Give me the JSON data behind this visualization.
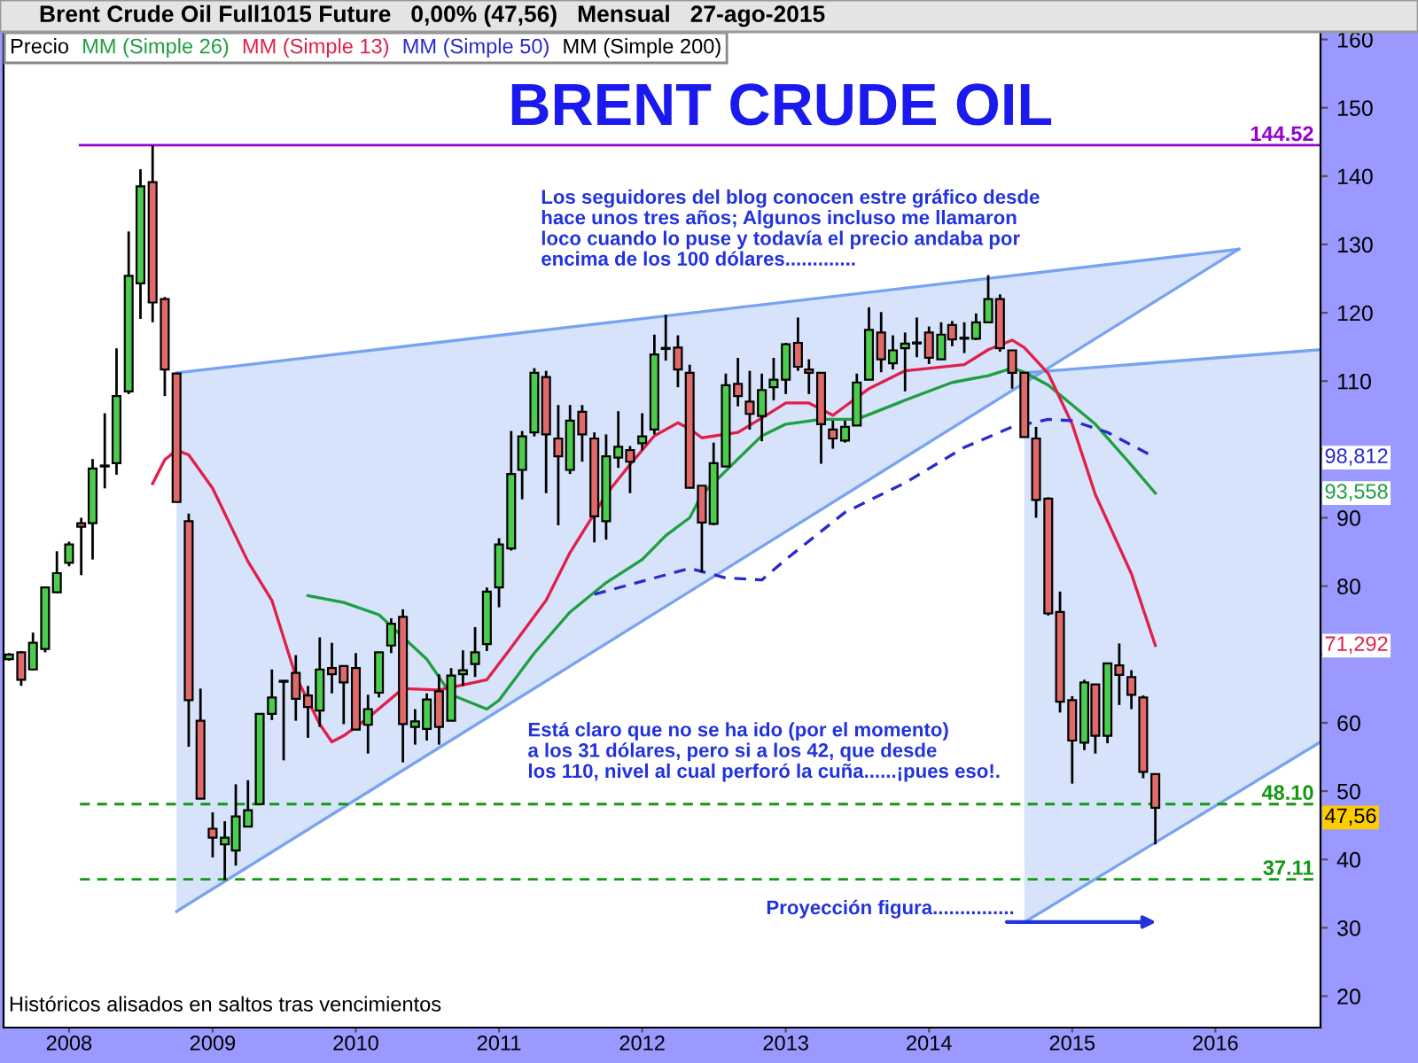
{
  "chart_data": {
    "type": "candlestick",
    "title": "BRENT CRUDE OIL",
    "subtitle": "Brent Crude Oil Full1015 Future   0,00% (47,56)   Mensual   27-ago-2015",
    "xlim": [
      "2007-07-18",
      "2016-09-25"
    ],
    "ylim": [
      15.4,
      161.1
    ],
    "xticks": [
      {
        "value": "2008",
        "label": "2008"
      },
      {
        "value": "2009",
        "label": "2009"
      },
      {
        "value": "2010",
        "label": "2010"
      },
      {
        "value": "2011",
        "label": "2011"
      },
      {
        "value": "2012",
        "label": "2012"
      },
      {
        "value": "2013",
        "label": "2013"
      },
      {
        "value": "2014",
        "label": "2014"
      },
      {
        "value": "2015",
        "label": "2015"
      },
      {
        "value": "2016",
        "label": "2016"
      }
    ],
    "yticks": [
      20,
      30,
      40,
      50,
      60,
      {
        "value": 70,
        "label": null
      },
      80,
      90,
      {
        "value": 100,
        "label": null
      },
      110,
      120,
      130,
      140,
      150,
      160
    ],
    "grid": false,
    "legend": "top left",
    "series": [
      {
        "name": "Precio",
        "color": "#000000",
        "x": [
          "2007-08",
          "2007-09",
          "2007-10",
          "2007-11",
          "2007-12",
          "2008-01",
          "2008-02",
          "2008-03",
          "2008-04",
          "2008-05",
          "2008-06",
          "2008-07",
          "2008-08",
          "2008-09",
          "2008-10",
          "2008-11",
          "2008-12",
          "2009-01",
          "2009-02",
          "2009-03",
          "2009-04",
          "2009-05",
          "2009-06",
          "2009-07",
          "2009-08",
          "2009-09",
          "2009-10",
          "2009-11",
          "2009-12",
          "2010-01",
          "2010-02",
          "2010-03",
          "2010-04",
          "2010-05",
          "2010-06",
          "2010-07",
          "2010-08",
          "2010-09",
          "2010-10",
          "2010-11",
          "2010-12",
          "2011-01",
          "2011-02",
          "2011-03",
          "2011-04",
          "2011-05",
          "2011-06",
          "2011-07",
          "2011-08",
          "2011-09",
          "2011-10",
          "2011-11",
          "2011-12",
          "2012-01",
          "2012-02",
          "2012-03",
          "2012-04",
          "2012-05",
          "2012-06",
          "2012-07",
          "2012-08",
          "2012-09",
          "2012-10",
          "2012-11",
          "2012-12",
          "2013-01",
          "2013-02",
          "2013-03",
          "2013-04",
          "2013-05",
          "2013-06",
          "2013-07",
          "2013-08",
          "2013-09",
          "2013-10",
          "2013-11",
          "2013-12",
          "2014-01",
          "2014-02",
          "2014-03",
          "2014-04",
          "2014-05",
          "2014-06",
          "2014-07",
          "2014-08",
          "2014-09",
          "2014-10",
          "2014-11",
          "2014-12",
          "2015-01",
          "2015-02",
          "2015-03",
          "2015-04",
          "2015-05",
          "2015-06",
          "2015-07",
          "2015-08"
        ],
        "ohlc": [
          [
            69.3,
            70.2,
            69.1,
            70.0
          ],
          [
            70.3,
            70.5,
            65.4,
            66.3
          ],
          [
            67.8,
            73.2,
            67.7,
            71.7
          ],
          [
            70.8,
            79.8,
            70.3,
            79.8
          ],
          [
            79.1,
            85.1,
            79.0,
            81.9
          ],
          [
            83.4,
            86.5,
            82.9,
            86.1
          ],
          [
            89.2,
            90.0,
            81.6,
            88.7
          ],
          [
            89.2,
            98.6,
            83.9,
            97.2
          ],
          [
            97.5,
            105.3,
            94.3,
            97.6
          ],
          [
            98.0,
            114.8,
            96.3,
            107.8
          ],
          [
            108.5,
            131.9,
            108.1,
            125.4
          ],
          [
            124.3,
            141.0,
            119.1,
            138.5
          ],
          [
            139.1,
            144.5,
            118.6,
            121.5
          ],
          [
            122.0,
            122.3,
            107.8,
            111.7
          ],
          [
            111.1,
            111.1,
            92.3,
            92.3
          ],
          [
            89.5,
            90.6,
            56.5,
            63.3
          ],
          [
            60.3,
            65.0,
            48.9,
            48.9
          ],
          [
            44.5,
            46.9,
            40.3,
            43.2
          ],
          [
            42.2,
            45.6,
            37.0,
            43.2
          ],
          [
            41.3,
            51.0,
            39.1,
            46.3
          ],
          [
            44.8,
            51.6,
            44.8,
            47.2
          ],
          [
            48.1,
            61.3,
            48.1,
            61.3
          ],
          [
            61.3,
            67.8,
            60.4,
            63.7
          ],
          [
            66.0,
            66.2,
            54.5,
            66.1
          ],
          [
            67.3,
            69.9,
            60.3,
            63.5
          ],
          [
            64.0,
            65.4,
            57.8,
            62.3
          ],
          [
            61.8,
            72.5,
            59.4,
            67.8
          ],
          [
            68.0,
            71.7,
            64.3,
            67.1
          ],
          [
            68.3,
            68.3,
            59.8,
            65.9
          ],
          [
            68.0,
            70.2,
            59.0,
            59.0
          ],
          [
            59.7,
            64.1,
            55.5,
            62.0
          ],
          [
            64.4,
            70.3,
            63.7,
            70.3
          ],
          [
            71.3,
            75.3,
            70.2,
            74.5
          ],
          [
            75.5,
            76.6,
            54.2,
            59.8
          ],
          [
            59.4,
            62.0,
            56.8,
            60.2
          ],
          [
            59.1,
            64.3,
            57.4,
            63.4
          ],
          [
            64.6,
            67.1,
            56.8,
            59.4
          ],
          [
            60.3,
            68.0,
            60.3,
            66.9
          ],
          [
            67.1,
            70.6,
            65.4,
            67.7
          ],
          [
            68.6,
            74.0,
            66.7,
            70.3
          ],
          [
            71.5,
            79.8,
            70.5,
            79.2
          ],
          [
            79.8,
            87.0,
            76.9,
            86.1
          ],
          [
            85.5,
            102.7,
            85.2,
            96.4
          ],
          [
            97.0,
            102.7,
            92.7,
            101.9
          ],
          [
            102.5,
            111.9,
            101.9,
            111.2
          ],
          [
            110.6,
            111.5,
            93.6,
            102.2
          ],
          [
            101.6,
            106.5,
            88.9,
            99.0
          ],
          [
            97.0,
            106.5,
            96.4,
            104.2
          ],
          [
            105.5,
            106.5,
            98.2,
            102.2
          ],
          [
            101.6,
            102.5,
            86.4,
            90.2
          ],
          [
            89.5,
            102.2,
            86.8,
            99.0
          ],
          [
            98.8,
            105.6,
            97.3,
            100.4
          ],
          [
            99.9,
            100.5,
            93.6,
            98.2
          ],
          [
            100.9,
            105.3,
            99.9,
            101.9
          ],
          [
            102.9,
            116.8,
            102.2,
            113.9
          ],
          [
            114.7,
            119.7,
            113.0,
            114.8
          ],
          [
            114.9,
            116.7,
            109.1,
            111.7
          ],
          [
            111.2,
            112.4,
            94.3,
            94.4
          ],
          [
            94.7,
            94.7,
            82.0,
            89.3
          ],
          [
            89.1,
            101.0,
            88.9,
            98.0
          ],
          [
            97.5,
            111.1,
            97.5,
            109.4
          ],
          [
            109.6,
            113.4,
            106.3,
            107.8
          ],
          [
            107.0,
            111.5,
            102.9,
            105.2
          ],
          [
            104.9,
            111.1,
            101.2,
            108.7
          ],
          [
            109.1,
            113.4,
            107.2,
            110.2
          ],
          [
            110.2,
            115.6,
            108.1,
            115.4
          ],
          [
            115.6,
            119.3,
            111.5,
            112.1
          ],
          [
            111.7,
            113.2,
            108.1,
            111.2
          ],
          [
            111.2,
            111.2,
            97.9,
            103.7
          ],
          [
            102.9,
            104.2,
            100.1,
            101.6
          ],
          [
            101.3,
            104.2,
            101.0,
            103.3
          ],
          [
            103.5,
            111.1,
            103.5,
            109.8
          ],
          [
            110.2,
            120.8,
            110.2,
            117.5
          ],
          [
            117.1,
            120.1,
            111.3,
            113.2
          ],
          [
            112.6,
            116.7,
            111.7,
            114.5
          ],
          [
            114.8,
            117.1,
            108.5,
            115.5
          ],
          [
            115.6,
            119.3,
            113.5,
            115.5
          ],
          [
            117.1,
            118.0,
            112.5,
            113.4
          ],
          [
            113.2,
            118.6,
            113.2,
            116.8
          ],
          [
            118.2,
            118.8,
            115.1,
            116.1
          ],
          [
            116.2,
            118.6,
            114.1,
            116.3
          ],
          [
            116.2,
            119.9,
            116.0,
            118.6
          ],
          [
            118.6,
            125.5,
            118.6,
            122.0
          ],
          [
            122.0,
            122.7,
            114.3,
            114.8
          ],
          [
            114.5,
            114.5,
            108.9,
            111.2
          ],
          [
            111.2,
            111.2,
            101.8,
            101.8
          ],
          [
            101.6,
            103.3,
            90.0,
            92.6
          ],
          [
            92.8,
            93.0,
            75.7,
            76.0
          ],
          [
            76.2,
            79.2,
            61.5,
            63.1
          ],
          [
            63.3,
            63.9,
            51.1,
            57.4
          ],
          [
            57.1,
            66.3,
            56.0,
            65.9
          ],
          [
            65.6,
            65.6,
            55.5,
            58.1
          ],
          [
            58.1,
            68.7,
            57.0,
            68.7
          ],
          [
            68.4,
            71.6,
            62.6,
            67.0
          ],
          [
            66.7,
            67.7,
            62.0,
            64.1
          ],
          [
            63.7,
            64.0,
            51.9,
            52.8
          ],
          [
            52.5,
            52.5,
            42.2,
            47.56
          ]
        ],
        "colors": [
          "#4ccc4c",
          "#e06a6a",
          "#4ccc4c",
          "#4ccc4c",
          "#4ccc4c",
          "#4ccc4c",
          "#e06a6a",
          "#4ccc4c",
          "#4ccc4c",
          "#4ccc4c",
          "#4ccc4c",
          "#4ccc4c",
          "#e06a6a",
          "#e06a6a",
          "#e06a6a",
          "#e06a6a",
          "#e06a6a",
          "#e06a6a",
          "#4ccc4c",
          "#4ccc4c",
          "#4ccc4c",
          "#4ccc4c",
          "#4ccc4c",
          "#4ccc4c",
          "#e06a6a",
          "#e06a6a",
          "#4ccc4c",
          "#e06a6a",
          "#e06a6a",
          "#e06a6a",
          "#4ccc4c",
          "#4ccc4c",
          "#4ccc4c",
          "#e06a6a",
          "#4ccc4c",
          "#4ccc4c",
          "#e06a6a",
          "#4ccc4c",
          "#4ccc4c",
          "#4ccc4c",
          "#4ccc4c",
          "#4ccc4c",
          "#4ccc4c",
          "#4ccc4c",
          "#4ccc4c",
          "#e06a6a",
          "#e06a6a",
          "#4ccc4c",
          "#e06a6a",
          "#e06a6a",
          "#4ccc4c",
          "#4ccc4c",
          "#e06a6a",
          "#4ccc4c",
          "#4ccc4c",
          "#4ccc4c",
          "#e06a6a",
          "#e06a6a",
          "#e06a6a",
          "#4ccc4c",
          "#4ccc4c",
          "#e06a6a",
          "#e06a6a",
          "#4ccc4c",
          "#4ccc4c",
          "#4ccc4c",
          "#e06a6a",
          "#e06a6a",
          "#e06a6a",
          "#e06a6a",
          "#4ccc4c",
          "#4ccc4c",
          "#4ccc4c",
          "#e06a6a",
          "#4ccc4c",
          "#4ccc4c",
          "#e06a6a",
          "#e06a6a",
          "#4ccc4c",
          "#e06a6a",
          "#4ccc4c",
          "#4ccc4c",
          "#4ccc4c",
          "#e06a6a",
          "#e06a6a",
          "#e06a6a",
          "#e06a6a",
          "#e06a6a",
          "#e06a6a",
          "#e06a6a",
          "#4ccc4c",
          "#e06a6a",
          "#4ccc4c",
          "#e06a6a",
          "#e06a6a",
          "#e06a6a",
          "#e06a6a"
        ]
      },
      {
        "name": "MM (Simple 26)",
        "type": "line",
        "color": "#1f9f3f",
        "line_style": "solid",
        "x": [
          "2009-09",
          "2009-12",
          "2010-03",
          "2010-07",
          "2010-09",
          "2010-12",
          "2011-01",
          "2011-04",
          "2011-07",
          "2011-10",
          "2012-01",
          "2012-03",
          "2012-05",
          "2012-06",
          "2012-09",
          "2012-11",
          "2013-01",
          "2013-04",
          "2013-07",
          "2013-11",
          "2014-03",
          "2014-06",
          "2014-08",
          "2014-09",
          "2014-11",
          "2015-03",
          "2015-06",
          "2015-08"
        ],
        "values": [
          78.6,
          77.6,
          75.8,
          69.3,
          64.1,
          62.0,
          63.3,
          70.2,
          76.2,
          80.5,
          83.9,
          87.4,
          90.0,
          93.4,
          98.6,
          102.0,
          103.7,
          104.4,
          104.4,
          107.2,
          109.8,
          110.8,
          111.9,
          111.3,
          109.4,
          103.7,
          97.7,
          93.6
        ]
      },
      {
        "name": "MM (Simple 13)",
        "type": "line",
        "color": "#e0204a",
        "line_style": "solid",
        "x": [
          "2008-08",
          "2008-09",
          "2008-10",
          "2008-11",
          "2009-01",
          "2009-04",
          "2009-06",
          "2009-08",
          "2009-10",
          "2009-11",
          "2009-12",
          "2010-02",
          "2010-05",
          "2010-08",
          "2010-12",
          "2011-02",
          "2011-05",
          "2011-07",
          "2011-10",
          "2011-12",
          "2012-02",
          "2012-04",
          "2012-05",
          "2012-06",
          "2012-09",
          "2012-11",
          "2013-01",
          "2013-03",
          "2013-05",
          "2013-06",
          "2013-08",
          "2013-11",
          "2014-04",
          "2014-06",
          "2014-08",
          "2014-09",
          "2014-11",
          "2015-01",
          "2015-03",
          "2015-06",
          "2015-08"
        ],
        "values": [
          95.0,
          98.5,
          99.9,
          99.2,
          94.3,
          83.6,
          77.9,
          66.8,
          59.8,
          57.2,
          58.1,
          60.7,
          65.0,
          64.8,
          66.3,
          71.0,
          77.9,
          84.9,
          93.4,
          97.8,
          102.0,
          103.9,
          103.0,
          101.7,
          102.5,
          104.6,
          106.8,
          106.8,
          105.0,
          106.3,
          108.9,
          111.5,
          112.4,
          114.6,
          116.0,
          114.9,
          111.1,
          103.7,
          93.4,
          81.8,
          71.3
        ]
      },
      {
        "name": "MM (Simple 50)",
        "type": "line",
        "color": "#2a2acc",
        "line_style": "dashed",
        "x": [
          "2011-09",
          "2012-05",
          "2012-08",
          "2012-11",
          "2013-01",
          "2013-06",
          "2013-11",
          "2014-04",
          "2014-08",
          "2014-11",
          "2015-01",
          "2015-04",
          "2015-08"
        ],
        "values": [
          78.8,
          82.6,
          81.2,
          80.9,
          83.9,
          90.8,
          95.1,
          100.3,
          103.3,
          104.4,
          104.2,
          102.5,
          98.8
        ]
      },
      {
        "name": "MM (Simple 200)",
        "type": "line",
        "color": "#000000",
        "line_style": "solid"
      },
      {
        "type": "line",
        "color": "#78a3f0",
        "line_style": "solid",
        "x": [
          "2008-10",
          "2016-03"
        ],
        "values": [
          111.2,
          129.3
        ],
        "lower": [
          32.4,
          129.3
        ],
        "upper": [
          111.2,
          129.3
        ]
      },
      {
        "type": "line",
        "color": "#78a3f0",
        "line_style": "solid",
        "x": [
          "2008-10",
          "2016-03"
        ],
        "values": [
          32.4,
          129.3
        ]
      },
      {
        "type": "line",
        "color": "#78a3f0",
        "line_style": "solid",
        "x": [
          "2014-09",
          "2016-09-25"
        ],
        "values": [
          111.2,
          114.6
        ],
        "lower": [
          30.8,
          57.2
        ],
        "upper": [
          111.2,
          114.6
        ]
      },
      {
        "type": "line",
        "color": "#78a3f0",
        "line_style": "solid",
        "x": [
          "2014-09",
          "2016-09-25"
        ],
        "values": [
          30.8,
          57.2
        ]
      }
    ],
    "ref_lines": [
      {
        "axis": "y",
        "value": 144.52,
        "label": "144.52",
        "color": "#9900cc",
        "line_style": "solid"
      },
      {
        "axis": "y",
        "value": 48.1,
        "label": "48.10",
        "color": "#119911",
        "line_style": "dashed"
      },
      {
        "axis": "y",
        "value": 37.11,
        "label": "37.11",
        "color": "#119911",
        "line_style": "dashed"
      }
    ],
    "annotations": [
      "Los seguidores del blog conocen estre gráfico desde\nhace unos tres años; Algunos incluso me llamaron\nloco cuando lo puse y todavía el precio andaba por\nencima de los 100 dólares.............",
      "Está claro que no se ha ido (por el momento)\na los 31 dólares, pero si a los 42, que desde\nlos 110, nivel al cual perforó la cuña......¡pues eso!.",
      "Proyección figura...............",
      "Históricos alisados en saltos tras vencimientos",
      "98,812",
      "93,558",
      "71,292",
      "47,56"
    ]
  }
}
